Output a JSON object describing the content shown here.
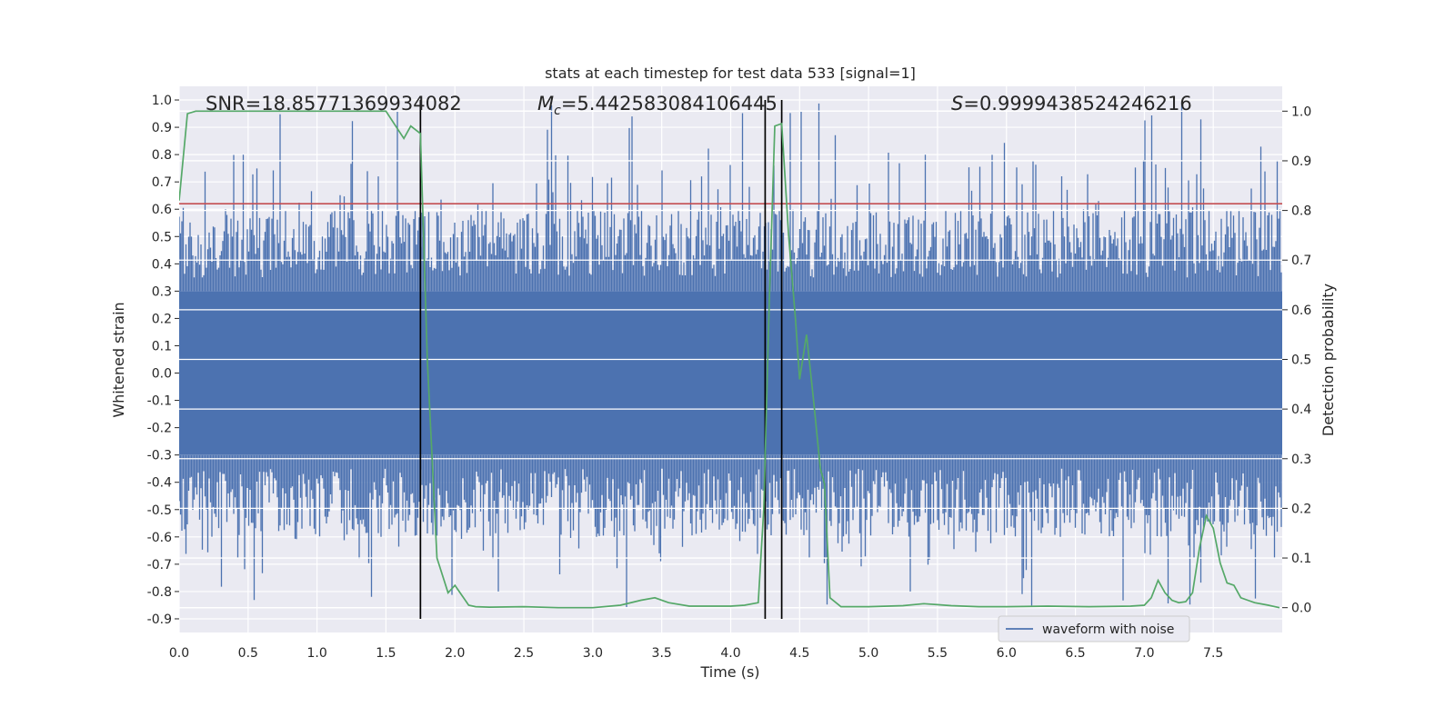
{
  "chart_data": {
    "type": "line",
    "title": "stats at each timestep for test data 533 [signal=1]",
    "xlabel": "Time (s)",
    "ylabel_left": "Whitened strain",
    "ylabel_right": "Detection probability",
    "xlim": [
      0.0,
      8.0
    ],
    "ylim_left": [
      -0.95,
      1.05
    ],
    "ylim_right": [
      -0.05,
      1.05
    ],
    "x_ticks": [
      "0.0",
      "0.5",
      "1.0",
      "1.5",
      "2.0",
      "2.5",
      "3.0",
      "3.5",
      "4.0",
      "4.5",
      "5.0",
      "5.5",
      "6.0",
      "6.5",
      "7.0",
      "7.5"
    ],
    "y_ticks_left": [
      "1.0",
      "0.9",
      "0.8",
      "0.7",
      "0.6",
      "0.5",
      "0.4",
      "0.3",
      "0.2",
      "0.1",
      "0.0",
      "-0.1",
      "-0.2",
      "-0.3",
      "-0.4",
      "-0.5",
      "-0.6",
      "-0.7",
      "-0.8",
      "-0.9"
    ],
    "y_ticks_right": [
      "1.0",
      "0.9",
      "0.8",
      "0.7",
      "0.6",
      "0.5",
      "0.4",
      "0.3",
      "0.2",
      "0.1",
      "0.0"
    ],
    "grid": true,
    "legend": {
      "label": "waveform with noise",
      "placement": "lower-right"
    },
    "annotations": {
      "snr": "SNR=18.85771369934082",
      "mc_symbol": "M",
      "mc_sub": "c",
      "mc_value": "=5.442583084106445",
      "s_symbol": "S",
      "s_value": "=0.9999438524246216"
    },
    "threshold": {
      "value": 0.62,
      "color": "#c44e52"
    },
    "vertical_lines": [
      1.75,
      4.25,
      4.37
    ],
    "series": [
      {
        "name": "waveform with noise",
        "axis": "left",
        "color": "#4c72b0",
        "description_values": {
          "core_min": -0.3,
          "core_max": 0.3,
          "peak_max": 1.0,
          "peak_min": -0.9
        }
      },
      {
        "name": "detection probability",
        "axis": "right",
        "color": "#55a868",
        "x": [
          0.0,
          0.06,
          0.12,
          0.25,
          0.5,
          0.75,
          1.0,
          1.25,
          1.5,
          1.57,
          1.63,
          1.68,
          1.75,
          1.8,
          1.87,
          1.95,
          2.0,
          2.05,
          2.1,
          2.15,
          2.25,
          2.5,
          2.75,
          3.0,
          3.2,
          3.35,
          3.45,
          3.55,
          3.7,
          4.0,
          4.1,
          4.2,
          4.24,
          4.28,
          4.32,
          4.37,
          4.42,
          4.47,
          4.5,
          4.55,
          4.6,
          4.65,
          4.68,
          4.72,
          4.8,
          5.0,
          5.25,
          5.4,
          5.5,
          5.6,
          5.8,
          6.0,
          6.3,
          6.6,
          6.9,
          7.0,
          7.05,
          7.1,
          7.15,
          7.2,
          7.25,
          7.3,
          7.35,
          7.4,
          7.45,
          7.5,
          7.55,
          7.6,
          7.65,
          7.7,
          7.75,
          7.8,
          7.9,
          7.98
        ],
        "values": [
          0.82,
          0.995,
          1.0,
          1.0,
          1.0,
          1.0,
          1.0,
          1.0,
          1.0,
          0.97,
          0.945,
          0.97,
          0.955,
          0.5,
          0.1,
          0.03,
          0.045,
          0.025,
          0.005,
          0.002,
          0.001,
          0.002,
          0.0,
          0.0,
          0.005,
          0.015,
          0.02,
          0.01,
          0.003,
          0.003,
          0.005,
          0.01,
          0.2,
          0.62,
          0.97,
          0.975,
          0.75,
          0.58,
          0.46,
          0.55,
          0.42,
          0.28,
          0.25,
          0.02,
          0.002,
          0.002,
          0.004,
          0.008,
          0.006,
          0.004,
          0.002,
          0.002,
          0.003,
          0.002,
          0.003,
          0.005,
          0.02,
          0.055,
          0.03,
          0.015,
          0.01,
          0.012,
          0.03,
          0.12,
          0.185,
          0.16,
          0.09,
          0.05,
          0.045,
          0.02,
          0.015,
          0.01,
          0.005,
          0.0
        ]
      }
    ]
  }
}
